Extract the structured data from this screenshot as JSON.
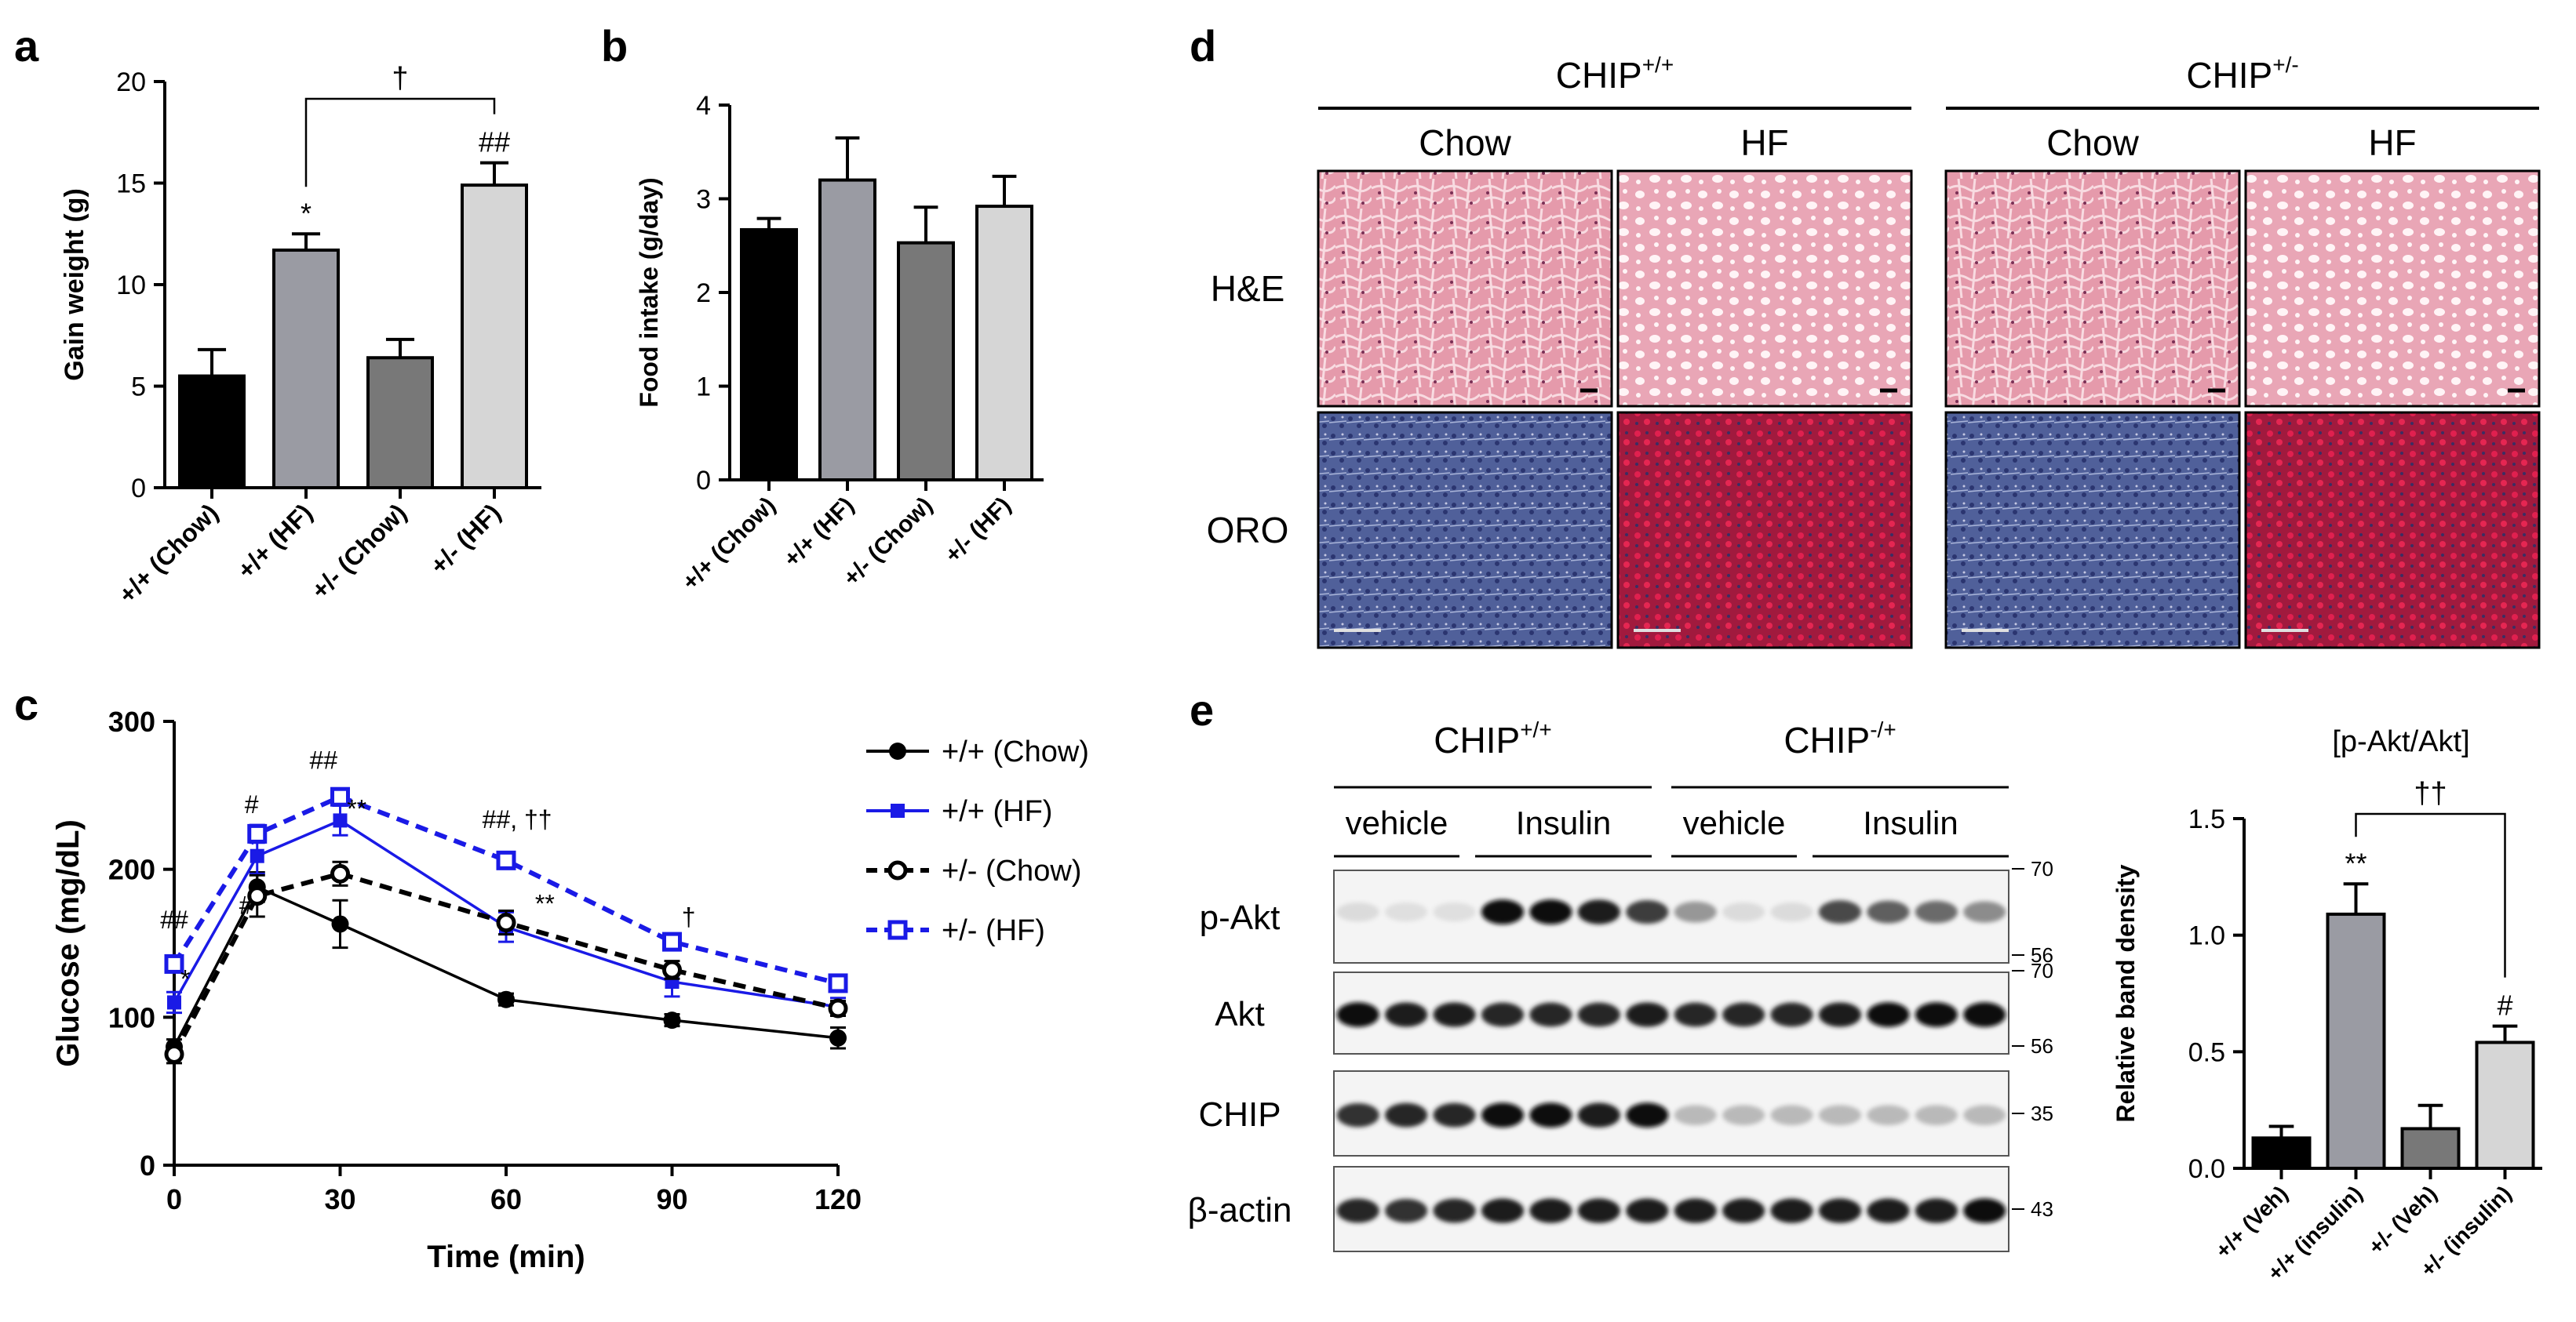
{
  "panel_letters": {
    "a": "a",
    "b": "b",
    "c": "c",
    "d": "d",
    "e": "e"
  },
  "colors": {
    "black": "#000000",
    "dark_gray": "#9a9ba3",
    "mid_gray": "#787878",
    "light_gray": "#d6d6d6",
    "blue": "#1a1ae6",
    "he_pink": "#e8a3b4",
    "oro_blue": "#3f4a86",
    "oro_red": "#b8163a"
  },
  "chart_data": [
    {
      "id": "a",
      "type": "bar",
      "ylabel": "Gain weight (g)",
      "ylim": [
        0,
        20
      ],
      "yticks": [
        0,
        5,
        10,
        15,
        20
      ],
      "categories": [
        "+/+ (Chow)",
        "+/+ (HF)",
        "+/- (Chow)",
        "+/- (HF)"
      ],
      "values": [
        5.5,
        11.7,
        6.4,
        14.9
      ],
      "errors": [
        1.3,
        0.8,
        0.9,
        1.1
      ],
      "fills": [
        "#000000",
        "#9a9ba3",
        "#787878",
        "#d6d6d6"
      ],
      "bar_annotations": [
        "",
        "*",
        "",
        "##"
      ],
      "bracket": {
        "from": 1,
        "to": 3,
        "label": "†"
      }
    },
    {
      "id": "b",
      "type": "bar",
      "ylabel": "Food intake (g/day)",
      "ylim": [
        0,
        4
      ],
      "yticks": [
        0,
        1,
        2,
        3,
        4
      ],
      "categories": [
        "+/+ (Chow)",
        "+/+ (HF)",
        "+/- (Chow)",
        "+/- (HF)"
      ],
      "values": [
        2.67,
        3.2,
        2.53,
        2.92
      ],
      "errors": [
        0.12,
        0.45,
        0.38,
        0.32
      ],
      "fills": [
        "#000000",
        "#9a9ba3",
        "#787878",
        "#d6d6d6"
      ]
    },
    {
      "id": "c",
      "type": "line",
      "xlabel": "Time (min)",
      "ylabel": "Glucose (mg/dL)",
      "xlim": [
        0,
        120
      ],
      "ylim": [
        0,
        300
      ],
      "xticks": [
        0,
        30,
        60,
        90,
        120
      ],
      "yticks": [
        0,
        100,
        200,
        300
      ],
      "x": [
        0,
        15,
        30,
        60,
        90,
        120
      ],
      "series": [
        {
          "name": "+/+ (Chow)",
          "values": [
            80,
            188,
            163,
            112,
            98,
            86
          ],
          "errors": [
            5,
            10,
            16,
            4,
            4,
            7
          ],
          "color": "#000000",
          "dash": "none",
          "marker": "circle-filled"
        },
        {
          "name": "+/+ (HF)",
          "values": [
            110,
            209,
            233,
            161,
            124,
            107
          ],
          "errors": [
            7,
            12,
            10,
            10,
            10,
            6
          ],
          "color": "#1a1ae6",
          "dash": "none",
          "marker": "square-filled"
        },
        {
          "name": "+/- (Chow)",
          "values": [
            75,
            182,
            197,
            164,
            132,
            106
          ],
          "errors": [
            6,
            14,
            8,
            8,
            6,
            5
          ],
          "color": "#000000",
          "dash": "dashed",
          "marker": "circle-open"
        },
        {
          "name": "+/- (HF)",
          "values": [
            136,
            224,
            249,
            206,
            151,
            123
          ],
          "errors": [
            5,
            6,
            5,
            4,
            4,
            4
          ],
          "color": "#1a1ae6",
          "dash": "dashed",
          "marker": "square-open"
        }
      ],
      "annotations": [
        {
          "text": "##",
          "x": 0,
          "y": 160
        },
        {
          "text": "*",
          "x": 2,
          "y": 120
        },
        {
          "text": "#",
          "x": 14,
          "y": 238
        },
        {
          "text": "#",
          "x": 13,
          "y": 170
        },
        {
          "text": "##",
          "x": 27,
          "y": 268
        },
        {
          "text": "**",
          "x": 33,
          "y": 235
        },
        {
          "text": "##, ††",
          "x": 62,
          "y": 228
        },
        {
          "text": "**",
          "x": 67,
          "y": 171
        },
        {
          "text": "†",
          "x": 93,
          "y": 162
        }
      ]
    },
    {
      "id": "e-bar",
      "type": "bar",
      "title": "[p-Akt/Akt]",
      "ylabel": "Relative band density",
      "ylim": [
        0,
        1.5
      ],
      "yticks": [
        0.0,
        0.5,
        1.0,
        1.5
      ],
      "categories": [
        "+/+ (Veh)",
        "+/+ (insulin)",
        "+/- (Veh)",
        "+/- (insulin)"
      ],
      "values": [
        0.13,
        1.09,
        0.17,
        0.54
      ],
      "errors": [
        0.05,
        0.13,
        0.1,
        0.07
      ],
      "fills": [
        "#000000",
        "#9a9ba3",
        "#787878",
        "#d6d6d6"
      ],
      "bar_annotations": [
        "",
        "**",
        "",
        "#"
      ],
      "bracket": {
        "from": 1,
        "to": 3,
        "label": "††"
      }
    }
  ],
  "panel_d": {
    "groups": [
      {
        "gene": "CHIP",
        "sup": "+/+",
        "columns": [
          "Chow",
          "HF"
        ]
      },
      {
        "gene": "CHIP",
        "sup": "+/-",
        "columns": [
          "Chow",
          "HF"
        ]
      }
    ],
    "rows": [
      "H&E",
      "ORO"
    ]
  },
  "panel_e": {
    "groups": [
      {
        "gene": "CHIP",
        "sup": "+/+",
        "conditions": [
          "vehicle",
          "Insulin"
        ]
      },
      {
        "gene": "CHIP",
        "sup": "-/+",
        "conditions": [
          "vehicle",
          "Insulin"
        ]
      }
    ],
    "blots": [
      {
        "label": "p-Akt",
        "markers": [
          "70",
          "56"
        ],
        "intensities": [
          0.05,
          0.03,
          0.03,
          0.95,
          0.95,
          0.9,
          0.75,
          0.35,
          0.05,
          0.05,
          0.7,
          0.6,
          0.55,
          0.4
        ]
      },
      {
        "label": "Akt",
        "markers": [
          "70",
          "56"
        ],
        "intensities": [
          0.95,
          0.9,
          0.9,
          0.85,
          0.85,
          0.85,
          0.9,
          0.85,
          0.85,
          0.85,
          0.9,
          0.95,
          0.95,
          0.95
        ]
      },
      {
        "label": "CHIP",
        "markers": [
          "35"
        ],
        "intensities": [
          0.8,
          0.85,
          0.85,
          0.95,
          0.95,
          0.9,
          0.95,
          0.2,
          0.2,
          0.2,
          0.2,
          0.2,
          0.2,
          0.2
        ]
      },
      {
        "label": "β-actin",
        "markers": [
          "43"
        ],
        "intensities": [
          0.85,
          0.8,
          0.85,
          0.9,
          0.9,
          0.9,
          0.9,
          0.9,
          0.9,
          0.9,
          0.9,
          0.9,
          0.9,
          0.95
        ]
      }
    ]
  }
}
